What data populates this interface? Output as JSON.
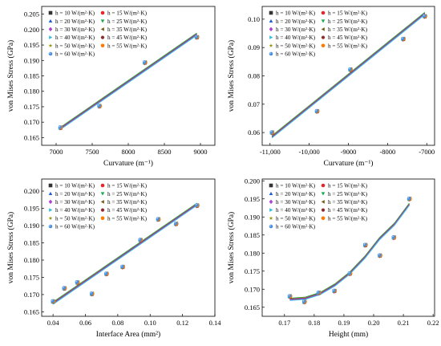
{
  "legend_series": [
    {
      "name": "h = 10 W/(m²·K)",
      "color": "#333333",
      "marker": "square"
    },
    {
      "name": "h = 15 W/(m²·K)",
      "color": "#e8262a",
      "marker": "circle"
    },
    {
      "name": "h = 20 W/(m²·K)",
      "color": "#1f5fd6",
      "marker": "triangle-up"
    },
    {
      "name": "h = 25 W/(m²·K)",
      "color": "#1aa84a",
      "marker": "triangle-down"
    },
    {
      "name": "h = 30 W/(m²·K)",
      "color": "#b040d8",
      "marker": "diamond"
    },
    {
      "name": "h = 35 W/(m²·K)",
      "color": "#7a5a1a",
      "marker": "triangle-left"
    },
    {
      "name": "h = 40 W/(m²·K)",
      "color": "#2ac0e0",
      "marker": "triangle-right"
    },
    {
      "name": "h = 45 W/(m²·K)",
      "color": "#8a2a2a",
      "marker": "hexagon"
    },
    {
      "name": "h = 50 W/(m²·K)",
      "color": "#9a9a10",
      "marker": "star"
    },
    {
      "name": "h = 55 W/(m²·K)",
      "color": "#ff7a00",
      "marker": "circle"
    },
    {
      "name": "h = 60 W/(m²·K)",
      "color": "#4a90e2",
      "marker": "sphere"
    }
  ],
  "chart_data": [
    {
      "type": "scatter",
      "xlabel": "Curvature (m⁻¹)",
      "ylabel": "von Mises Stress (GPa)",
      "xlim": [
        6800,
        9200
      ],
      "ylim": [
        0.1625,
        0.2075
      ],
      "xticks": [
        7000,
        7500,
        8000,
        8500,
        9000
      ],
      "xtick_labels": [
        "7000",
        "7500",
        "8000",
        "8500",
        "9000"
      ],
      "yticks": [
        0.165,
        0.17,
        0.175,
        0.18,
        0.185,
        0.19,
        0.195,
        0.2,
        0.205
      ],
      "ytick_labels": [
        "0.165",
        "0.170",
        "0.175",
        "0.180",
        "0.185",
        "0.190",
        "0.195",
        "0.200",
        "0.205"
      ],
      "points": [
        [
          7060,
          0.1682
        ],
        [
          7600,
          0.1752
        ],
        [
          8230,
          0.1893
        ],
        [
          8950,
          0.1975
        ]
      ],
      "fit": {
        "kind": "line",
        "points": [
          [
            7060,
            0.168
          ],
          [
            8950,
            0.1985
          ]
        ]
      },
      "legend_position": "top-left"
    },
    {
      "type": "scatter",
      "xlabel": "Curvature (m⁻¹)",
      "ylabel": "von Mises Stress (GPa)",
      "xlim": [
        -11200,
        -6800
      ],
      "ylim": [
        0.0555,
        0.1045
      ],
      "xticks": [
        -11000,
        -10000,
        -9000,
        -8000,
        -7000
      ],
      "xtick_labels": [
        "-11,000",
        "-10,000",
        "-9000",
        "-8000",
        "-7000"
      ],
      "yticks": [
        0.06,
        0.07,
        0.08,
        0.09,
        0.1
      ],
      "ytick_labels": [
        "0.06",
        "0.07",
        "0.08",
        "0.09",
        "0.10"
      ],
      "points": [
        [
          -10950,
          0.06
        ],
        [
          -9800,
          0.0675
        ],
        [
          -8950,
          0.0822
        ],
        [
          -7600,
          0.093
        ],
        [
          -7050,
          0.101
        ]
      ],
      "fit": {
        "kind": "line",
        "points": [
          [
            -10950,
            0.0585
          ],
          [
            -7050,
            0.102
          ]
        ]
      },
      "legend_position": "top-left"
    },
    {
      "type": "scatter",
      "xlabel": "Interface Area (mm²)",
      "ylabel": "von Mises Stress (GPa)",
      "xlim": [
        0.033,
        0.14
      ],
      "ylim": [
        0.1637,
        0.2035
      ],
      "xticks": [
        0.04,
        0.06,
        0.08,
        0.1,
        0.12,
        0.14
      ],
      "xtick_labels": [
        "0.04",
        "0.06",
        "0.08",
        "0.10",
        "0.12",
        "0.14"
      ],
      "yticks": [
        0.165,
        0.17,
        0.175,
        0.18,
        0.185,
        0.19,
        0.195,
        0.2
      ],
      "ytick_labels": [
        "0.165",
        "0.170",
        "0.175",
        "0.180",
        "0.185",
        "0.190",
        "0.195",
        "0.200"
      ],
      "points": [
        [
          0.04,
          0.168
        ],
        [
          0.047,
          0.1718
        ],
        [
          0.055,
          0.1735
        ],
        [
          0.064,
          0.1702
        ],
        [
          0.073,
          0.176
        ],
        [
          0.083,
          0.178
        ],
        [
          0.094,
          0.1858
        ],
        [
          0.105,
          0.1918
        ],
        [
          0.116,
          0.1905
        ],
        [
          0.129,
          0.1958
        ]
      ],
      "fit": {
        "kind": "line",
        "points": [
          [
            0.04,
            0.1675
          ],
          [
            0.129,
            0.1962
          ]
        ]
      },
      "legend_position": "top-left"
    },
    {
      "type": "scatter",
      "xlabel": "Height (mm)",
      "ylabel": "von Mises Stress (GPa)",
      "xlim": [
        0.1625,
        0.2205
      ],
      "ylim": [
        0.1625,
        0.2005
      ],
      "xticks": [
        0.17,
        0.18,
        0.19,
        0.2,
        0.21,
        0.22
      ],
      "xtick_labels": [
        "0.17",
        "0.18",
        "0.19",
        "0.20",
        "0.21",
        "0.22"
      ],
      "yticks": [
        0.165,
        0.17,
        0.175,
        0.18,
        0.185,
        0.19,
        0.195,
        0.2
      ],
      "ytick_labels": [
        "0.165",
        "0.170",
        "0.175",
        "0.180",
        "0.185",
        "0.190",
        "0.195",
        "0.200"
      ],
      "points": [
        [
          0.1718,
          0.168
        ],
        [
          0.1767,
          0.1665
        ],
        [
          0.1815,
          0.169
        ],
        [
          0.1868,
          0.1695
        ],
        [
          0.192,
          0.1743
        ],
        [
          0.1972,
          0.1822
        ],
        [
          0.2021,
          0.1793
        ],
        [
          0.2068,
          0.1843
        ],
        [
          0.212,
          0.195
        ]
      ],
      "fit": {
        "kind": "curve",
        "points": [
          [
            0.1718,
            0.1672
          ],
          [
            0.177,
            0.1675
          ],
          [
            0.182,
            0.1688
          ],
          [
            0.187,
            0.1712
          ],
          [
            0.192,
            0.1745
          ],
          [
            0.197,
            0.1788
          ],
          [
            0.202,
            0.184
          ],
          [
            0.207,
            0.188
          ],
          [
            0.212,
            0.1935
          ]
        ]
      },
      "legend_position": "top-left"
    }
  ]
}
